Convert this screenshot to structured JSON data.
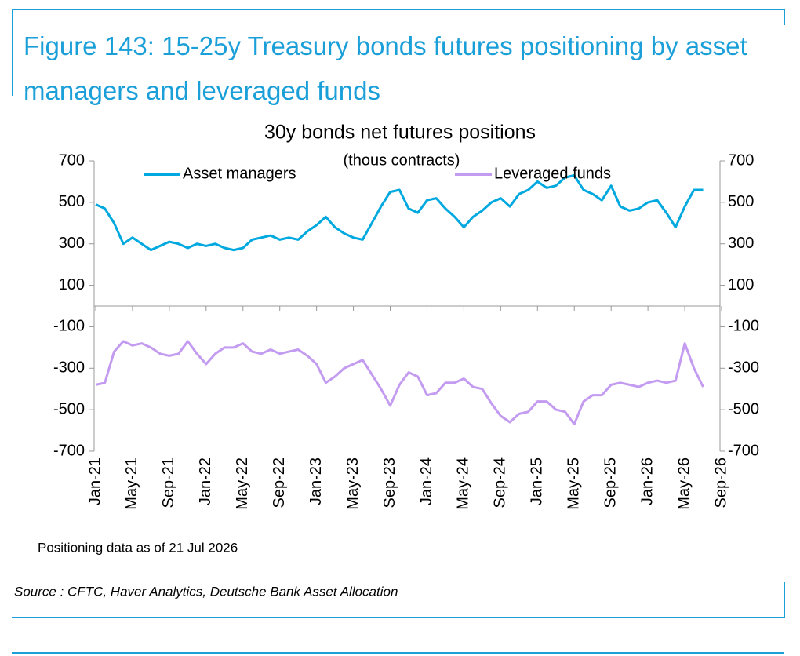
{
  "figure": {
    "title": "Figure 143: 15-25y Treasury bonds futures positioning by asset managers and leveraged funds"
  },
  "chart_data": {
    "type": "line",
    "title": "30y bonds net futures positions",
    "subtitle": "(thous contracts)",
    "x": [
      "Jan-21",
      "Feb-21",
      "Mar-21",
      "Apr-21",
      "May-21",
      "Jun-21",
      "Jul-21",
      "Aug-21",
      "Sep-21",
      "Oct-21",
      "Nov-21",
      "Dec-21",
      "Jan-22",
      "Feb-22",
      "Mar-22",
      "Apr-22",
      "May-22",
      "Jun-22",
      "Jul-22",
      "Aug-22",
      "Sep-22",
      "Oct-22",
      "Nov-22",
      "Dec-22",
      "Jan-23",
      "Feb-23",
      "Mar-23",
      "Apr-23",
      "May-23",
      "Jun-23",
      "Jul-23",
      "Aug-23",
      "Sep-23",
      "Oct-23",
      "Nov-23",
      "Dec-23",
      "Jan-24",
      "Feb-24",
      "Mar-24",
      "Apr-24",
      "May-24",
      "Jun-24",
      "Jul-24",
      "Aug-24",
      "Sep-24",
      "Oct-24",
      "Nov-24",
      "Dec-24",
      "Jan-25",
      "Feb-25",
      "Mar-25",
      "Apr-25",
      "May-25",
      "Jun-25",
      "Jul-25",
      "Aug-25",
      "Sep-25",
      "Oct-25",
      "Nov-25",
      "Dec-25",
      "Jan-26",
      "Feb-26",
      "Mar-26",
      "Apr-26",
      "May-26",
      "Jun-26",
      "Jul-26"
    ],
    "series": [
      {
        "name": "Asset managers",
        "color": "#00a8e0",
        "values": [
          490,
          470,
          400,
          300,
          330,
          300,
          270,
          290,
          310,
          300,
          280,
          300,
          290,
          300,
          280,
          270,
          280,
          320,
          330,
          340,
          320,
          330,
          320,
          360,
          390,
          430,
          380,
          350,
          330,
          320,
          400,
          480,
          550,
          560,
          470,
          450,
          510,
          520,
          470,
          430,
          380,
          430,
          460,
          500,
          520,
          480,
          540,
          560,
          600,
          570,
          580,
          620,
          630,
          560,
          540,
          510,
          580,
          480,
          460,
          470,
          500,
          510,
          450,
          380,
          480,
          560,
          560
        ]
      },
      {
        "name": "Leveraged funds",
        "color": "#c39bf0",
        "values": [
          -380,
          -370,
          -220,
          -170,
          -190,
          -180,
          -200,
          -230,
          -240,
          -230,
          -170,
          -230,
          -280,
          -230,
          -200,
          -200,
          -180,
          -220,
          -230,
          -210,
          -230,
          -220,
          -210,
          -240,
          -280,
          -370,
          -340,
          -300,
          -280,
          -260,
          -330,
          -400,
          -480,
          -380,
          -320,
          -340,
          -430,
          -420,
          -370,
          -370,
          -350,
          -390,
          -400,
          -470,
          -530,
          -560,
          -520,
          -510,
          -460,
          -460,
          -500,
          -510,
          -570,
          -460,
          -430,
          -430,
          -380,
          -370,
          -380,
          -390,
          -370,
          -360,
          -370,
          -360,
          -180,
          -300,
          -390
        ]
      }
    ],
    "xlim": [
      "Jan-21",
      "Sep-26"
    ],
    "xticks": [
      "Jan-21",
      "May-21",
      "Sep-21",
      "Jan-22",
      "May-22",
      "Sep-22",
      "Jan-23",
      "May-23",
      "Sep-23",
      "Jan-24",
      "May-24",
      "Sep-24",
      "Jan-25",
      "May-25",
      "Sep-25",
      "Jan-26",
      "May-26",
      "Sep-26"
    ],
    "ylim": [
      -700,
      700
    ],
    "yticks": [
      700,
      500,
      300,
      100,
      -100,
      -300,
      -500,
      -700
    ],
    "y2lim": [
      -700,
      700
    ],
    "y2ticks": [
      700,
      500,
      300,
      100,
      -100,
      -300,
      -500,
      -700
    ]
  },
  "note": "Positioning data as of 21 Jul 2026",
  "source": "Source : CFTC, Haver Analytics, Deutsche Bank Asset Allocation"
}
